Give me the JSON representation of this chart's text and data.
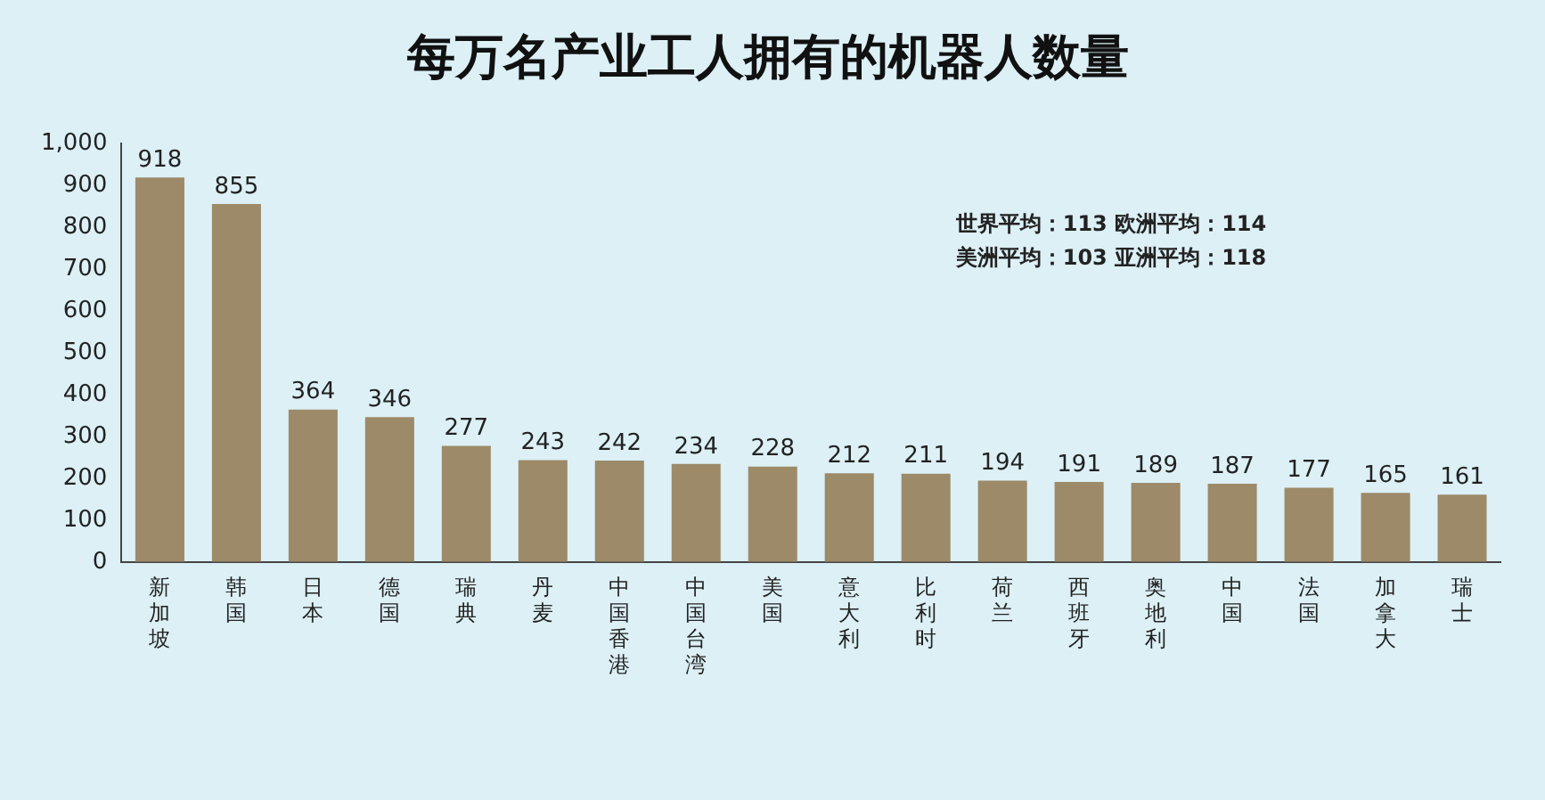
{
  "chart_data": {
    "type": "bar",
    "title": "每万名产业工人拥有的机器人数量",
    "categories": [
      "新加坡",
      "韩国",
      "日本",
      "德国",
      "瑞典",
      "丹麦",
      "中国香港",
      "中国台湾",
      "美国",
      "意大利",
      "比利时",
      "荷兰",
      "西班牙",
      "奥地利",
      "中国",
      "法国",
      "加拿大",
      "瑞士"
    ],
    "values": [
      918,
      855,
      364,
      346,
      277,
      243,
      242,
      234,
      228,
      212,
      211,
      194,
      191,
      189,
      187,
      177,
      165,
      161
    ],
    "color": "#9c8a68",
    "ylim": [
      0,
      1000
    ],
    "yticks": [
      0,
      100,
      200,
      300,
      400,
      500,
      600,
      700,
      800,
      900,
      {
        "value": 1000,
        "label": "1,000"
      }
    ],
    "data_labels": true,
    "grid": false,
    "legend": false,
    "annotations": [
      "世界平均：113 欧洲平均：114",
      "美洲平均：103 亚洲平均：118"
    ]
  }
}
